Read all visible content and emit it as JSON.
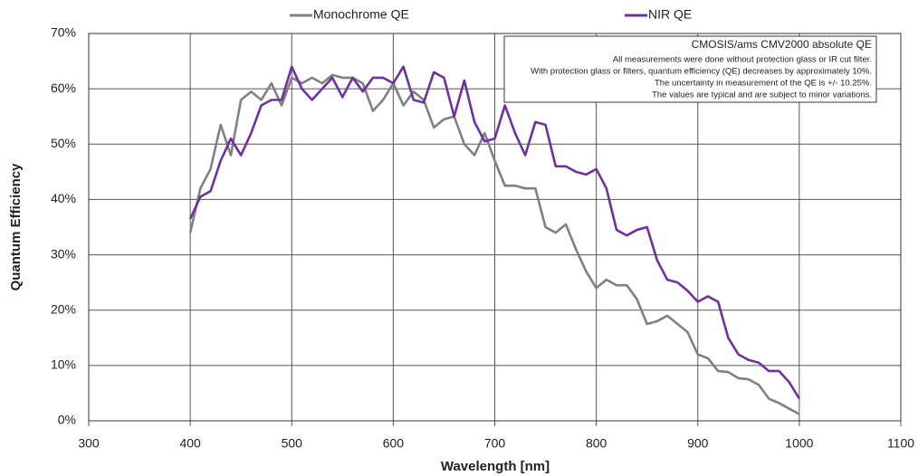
{
  "chart_data": {
    "type": "line",
    "x_label": "Wavelength [nm]",
    "y_label": "Quantum Efficiency",
    "annotations": [
      "CMOSIS/ams CMV2000 absolute QE",
      "All measurements were done without protection glass or IR cut filter.",
      "With protection glass or filters, quantum efficiency (QE) decreases by approximately 10%.",
      "The uncertainty in measurement of the QE is +/- 10.25%.",
      "The values are typical and are subject to minor variations."
    ],
    "x": [
      400,
      410,
      420,
      430,
      440,
      450,
      460,
      470,
      480,
      490,
      500,
      510,
      520,
      530,
      540,
      550,
      560,
      570,
      580,
      590,
      600,
      610,
      620,
      630,
      640,
      650,
      660,
      670,
      680,
      690,
      700,
      710,
      720,
      730,
      740,
      750,
      760,
      770,
      780,
      790,
      800,
      810,
      820,
      830,
      840,
      850,
      860,
      870,
      880,
      890,
      900,
      910,
      920,
      930,
      940,
      950,
      960,
      970,
      980,
      990,
      1000
    ],
    "series": [
      {
        "name": "Monochrome QE",
        "color": "#808080",
        "values": [
          34,
          42,
          45.5,
          53.5,
          48,
          58,
          59.5,
          58,
          61,
          57,
          62,
          61,
          62,
          61,
          62.5,
          62,
          62,
          61,
          56,
          58,
          61,
          57,
          59.5,
          58,
          53,
          54.5,
          55,
          50,
          48,
          52,
          47,
          42.5,
          42.5,
          42,
          42,
          35,
          34,
          35.5,
          31,
          27,
          24,
          25.5,
          24.5,
          24.5,
          22,
          17.5,
          18,
          19,
          17.5,
          16,
          12,
          11.3,
          9,
          8.8,
          7.7,
          7.5,
          6.5,
          4,
          3.2,
          2.2,
          1.2
        ]
      },
      {
        "name": "NIR QE",
        "color": "#7030a0",
        "values": [
          36.5,
          40.5,
          41.5,
          47,
          51,
          48,
          52,
          57,
          58,
          58,
          64,
          60,
          58,
          60,
          62,
          58.5,
          62,
          59.5,
          62,
          62,
          61,
          64,
          58,
          57.5,
          63,
          62,
          55,
          61.5,
          54,
          50.5,
          51,
          57,
          52,
          48,
          54,
          53.5,
          46,
          46,
          45,
          44.5,
          45.5,
          42,
          34.5,
          33.5,
          34.5,
          35,
          29,
          25.5,
          25,
          23.5,
          21.5,
          22.5,
          21.5,
          15,
          12,
          11,
          10.5,
          9,
          9,
          7,
          4
        ]
      }
    ],
    "xlim": [
      300,
      1100
    ],
    "xticks": [
      300,
      400,
      500,
      600,
      700,
      800,
      900,
      1000,
      1100
    ],
    "ylim": [
      0,
      70
    ],
    "yticks": [
      {
        "value": 0,
        "label": "0%"
      },
      {
        "value": 10,
        "label": "10%"
      },
      {
        "value": 20,
        "label": "20%"
      },
      {
        "value": 30,
        "label": "30%"
      },
      {
        "value": 40,
        "label": "40%"
      },
      {
        "value": 50,
        "label": "50%"
      },
      {
        "value": 60,
        "label": "60%"
      },
      {
        "value": 70,
        "label": "70%"
      }
    ],
    "grid": true,
    "legend": "top"
  }
}
